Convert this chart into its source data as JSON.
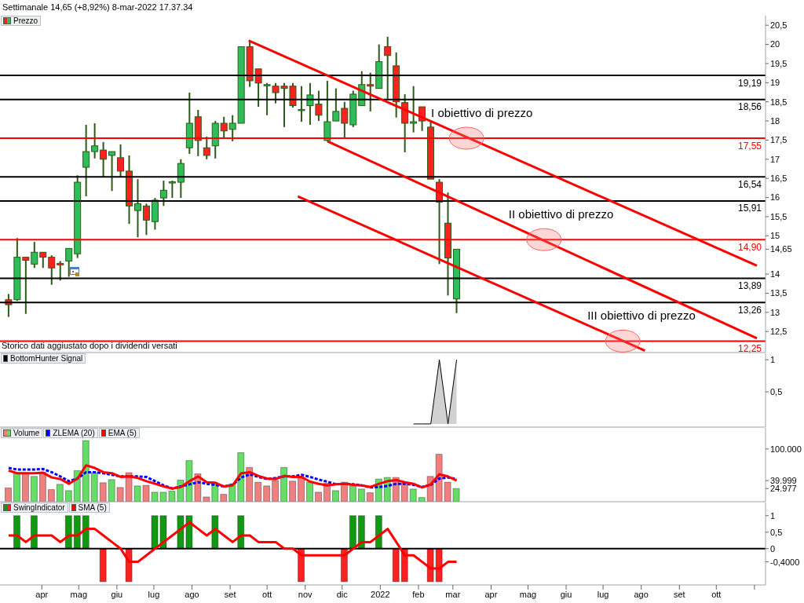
{
  "chart_data": [
    {
      "type": "candlestick",
      "title": "Settimanale 14,65 (+8,92%) 8-mar-2022 17.37.34",
      "legend": "top left",
      "tick_labels": "y",
      "x": [
        "2021-03-05",
        "2021-03-12",
        "2021-03-19",
        "2021-03-26",
        "2021-04-02",
        "2021-04-09",
        "2021-04-16",
        "2021-04-23",
        "2021-04-30",
        "2021-05-07",
        "2021-05-14",
        "2021-05-21",
        "2021-05-28",
        "2021-06-04",
        "2021-06-11",
        "2021-06-18",
        "2021-06-25",
        "2021-07-02",
        "2021-07-09",
        "2021-07-16",
        "2021-07-23",
        "2021-07-30",
        "2021-08-06",
        "2021-08-13",
        "2021-08-20",
        "2021-08-27",
        "2021-09-03",
        "2021-09-10",
        "2021-09-17",
        "2021-09-24",
        "2021-10-01",
        "2021-10-08",
        "2021-10-15",
        "2021-10-22",
        "2021-10-29",
        "2021-11-05",
        "2021-11-12",
        "2021-11-19",
        "2021-11-26",
        "2021-12-03",
        "2021-12-10",
        "2021-12-17",
        "2021-12-24",
        "2021-12-31",
        "2022-01-07",
        "2022-01-14",
        "2022-01-21",
        "2022-01-28",
        "2022-02-04",
        "2022-02-11",
        "2022-02-18",
        "2022-02-25",
        "2022-03-04"
      ],
      "xlim": [
        "2021-02-26",
        "2022-11-10"
      ],
      "ylim": [
        11.95,
        20.75
      ],
      "yticks": [
        {
          "value": 12.5,
          "label": "12,5"
        },
        13,
        {
          "value": 13.5,
          "label": "13,5"
        },
        14,
        {
          "value": 14.65,
          "label": "14,65"
        },
        15,
        {
          "value": 15.5,
          "label": "15,5"
        },
        16,
        {
          "value": 16.5,
          "label": "16,5"
        },
        17,
        {
          "value": 17.5,
          "label": "17,5"
        },
        18,
        {
          "value": 18.5,
          "label": "18,5"
        },
        19,
        {
          "value": 19.5,
          "label": "19,5"
        },
        20,
        {
          "value": 20.5,
          "label": "20,5"
        }
      ],
      "series": [
        {
          "name": "Prezzo",
          "type": "candlestick",
          "ohlc": [
            [
              13.33,
              13.48,
              12.88,
              13.2
            ],
            [
              13.33,
              14.94,
              13.3,
              14.44
            ],
            [
              14.44,
              14.44,
              12.96,
              14.36
            ],
            [
              14.26,
              14.84,
              14.16,
              14.57
            ],
            [
              14.57,
              14.57,
              14.16,
              14.44
            ],
            [
              14.44,
              14.49,
              13.72,
              14.16
            ],
            [
              14.28,
              14.34,
              13.83,
              14.24
            ],
            [
              14.34,
              14.67,
              13.93,
              14.67
            ],
            [
              14.53,
              16.58,
              14.42,
              16.4
            ],
            [
              16.79,
              17.9,
              16.03,
              17.2
            ],
            [
              17.2,
              17.94,
              17.02,
              17.35
            ],
            [
              17.24,
              17.45,
              16.54,
              17.0
            ],
            [
              17.1,
              17.2,
              16.17,
              17.2
            ],
            [
              17.04,
              17.39,
              16.54,
              16.69
            ],
            [
              16.69,
              17.1,
              15.31,
              15.78
            ],
            [
              15.66,
              16.48,
              14.96,
              15.84
            ],
            [
              15.78,
              15.84,
              15.02,
              15.41
            ],
            [
              15.37,
              15.99,
              15.16,
              15.93
            ],
            [
              15.99,
              16.44,
              15.78,
              16.19
            ],
            [
              16.38,
              16.44,
              15.99,
              16.41
            ],
            [
              16.4,
              17.0,
              15.99,
              16.89
            ],
            [
              17.3,
              18.74,
              17.14,
              17.94
            ],
            [
              18.11,
              18.29,
              17.08,
              17.49
            ],
            [
              17.3,
              17.59,
              17.0,
              17.1
            ],
            [
              17.35,
              18.0,
              17.02,
              17.94
            ],
            [
              17.94,
              18.11,
              17.57,
              17.74
            ],
            [
              17.78,
              18.15,
              17.47,
              17.94
            ],
            [
              17.94,
              19.94,
              17.94,
              19.94
            ],
            [
              19.94,
              20.1,
              18.89,
              19.05
            ],
            [
              19.36,
              19.36,
              18.37,
              18.99
            ],
            [
              18.93,
              18.99,
              18.15,
              18.95
            ],
            [
              18.91,
              18.99,
              18.46,
              18.74
            ],
            [
              18.91,
              18.99,
              17.84,
              18.85
            ],
            [
              18.91,
              18.99,
              18.35,
              18.4
            ],
            [
              18.28,
              18.91,
              17.98,
              18.3
            ],
            [
              18.4,
              18.99,
              17.9,
              18.68
            ],
            [
              18.44,
              18.79,
              18.0,
              18.15
            ],
            [
              17.49,
              19.05,
              17.47,
              17.98
            ],
            [
              18.0,
              18.85,
              18.0,
              18.25
            ],
            [
              18.33,
              18.5,
              17.57,
              17.94
            ],
            [
              17.9,
              18.79,
              17.84,
              18.7
            ],
            [
              18.4,
              19.3,
              18.4,
              18.95
            ],
            [
              18.95,
              19.26,
              18.25,
              18.91
            ],
            [
              18.85,
              20.0,
              18.85,
              19.55
            ],
            [
              19.94,
              20.2,
              18.58,
              19.71
            ],
            [
              19.44,
              19.79,
              18.09,
              18.5
            ],
            [
              18.48,
              18.7,
              17.18,
              17.94
            ],
            [
              17.94,
              18.91,
              17.7,
              17.98
            ],
            [
              18.37,
              18.37,
              17.74,
              18.0
            ],
            [
              17.84,
              18.0,
              16.48,
              16.48
            ],
            [
              16.4,
              16.48,
              14.26,
              15.88
            ],
            [
              15.33,
              16.13,
              13.44,
              14.42
            ],
            [
              13.35,
              14.65,
              12.98,
              14.65
            ]
          ],
          "colors": [
            "#ff2020",
            "#2ebd59",
            "#ff2020",
            "#2ebd59",
            "#ff2020",
            "#ff2020",
            "#ff2020",
            "#2ebd59",
            "#2ebd59",
            "#2ebd59",
            "#2ebd59",
            "#ff2020",
            "#2ebd59",
            "#ff2020",
            "#ff2020",
            "#2ebd59",
            "#ff2020",
            "#2ebd59",
            "#2ebd59",
            "#2ebd59",
            "#2ebd59",
            "#2ebd59",
            "#ff2020",
            "#ff2020",
            "#2ebd59",
            "#ff2020",
            "#2ebd59",
            "#2ebd59",
            "#ff2020",
            "#ff2020",
            "#2ebd59",
            "#ff2020",
            "#ff2020",
            "#ff2020",
            "#2ebd59",
            "#2ebd59",
            "#ff2020",
            "#2ebd59",
            "#2ebd59",
            "#ff2020",
            "#2ebd59",
            "#2ebd59",
            "#ff2020",
            "#2ebd59",
            "#ff2020",
            "#ff2020",
            "#ff2020",
            "#2ebd59",
            "#ff2020",
            "#ff2020",
            "#ff2020",
            "#ff2020",
            "#2ebd59"
          ]
        },
        {
          "type": "line",
          "color": "#ff0000",
          "x": [
            "2021-09-16",
            "2022-11-03"
          ],
          "values": [
            20.1,
            14.22
          ]
        },
        {
          "type": "line",
          "color": "#ff0000",
          "x": [
            "2021-11-19",
            "2022-11-03"
          ],
          "values": [
            17.47,
            12.32
          ]
        },
        {
          "type": "line",
          "color": "#ff0000",
          "x": [
            "2021-10-26",
            "2022-08-04"
          ],
          "values": [
            16.03,
            12.0
          ]
        }
      ],
      "ref_lines": [
        {
          "axis": "y",
          "value": 19.19,
          "label": "19,19",
          "color": "#000000"
        },
        {
          "axis": "y",
          "value": 18.56,
          "label": "18,56",
          "color": "#000000"
        },
        {
          "axis": "y",
          "value": 17.55,
          "label": "17,55",
          "color": "#ff0000"
        },
        {
          "axis": "y",
          "value": 16.54,
          "label": "16,54",
          "color": "#000000"
        },
        {
          "axis": "y",
          "value": 15.91,
          "label": "15,91",
          "color": "#000000"
        },
        {
          "axis": "y",
          "value": 14.9,
          "label": "14,90",
          "color": "#ff0000"
        },
        {
          "axis": "y",
          "value": 13.89,
          "label": "13,89",
          "color": "#000000"
        },
        {
          "axis": "y",
          "value": 13.26,
          "label": "13,26",
          "color": "#000000"
        },
        {
          "axis": "y",
          "value": 12.25,
          "label": "12,25",
          "color": "#ff0000"
        }
      ],
      "annotations": [
        {
          "text": "I obiettivo di prezzo",
          "x": "2022-03-12",
          "y": 17.55
        },
        {
          "text": "II obiettivo di prezzo",
          "x": "2022-05-14",
          "y": 14.9
        },
        {
          "text": "III obiettivo di prezzo",
          "x": "2022-07-17",
          "y": 12.25
        },
        "Storico dati aggiustato dopo i dividendi versati"
      ]
    },
    {
      "type": "area",
      "legend": "top left",
      "tick_labels": "y",
      "xlim": [
        "2021-02-26",
        "2022-11-10"
      ],
      "ylim": [
        -0.05,
        1.1
      ],
      "yticks": [
        {
          "value": 0.5,
          "label": "0,5"
        },
        1
      ],
      "series": [
        {
          "name": "BottomHunter Signal",
          "color": "#000000",
          "x": [
            "2022-01-28",
            "2022-02-04",
            "2022-02-11",
            "2022-02-18",
            "2022-02-25",
            "2022-03-04"
          ],
          "values": [
            0,
            0,
            0,
            1,
            0,
            1
          ]
        }
      ]
    },
    {
      "type": "bar",
      "legend": "top left",
      "tick_labels": "y",
      "x": [
        "2021-03-05",
        "2021-03-12",
        "2021-03-19",
        "2021-03-26",
        "2021-04-02",
        "2021-04-09",
        "2021-04-16",
        "2021-04-23",
        "2021-04-30",
        "2021-05-07",
        "2021-05-14",
        "2021-05-21",
        "2021-05-28",
        "2021-06-04",
        "2021-06-11",
        "2021-06-18",
        "2021-06-25",
        "2021-07-02",
        "2021-07-09",
        "2021-07-16",
        "2021-07-23",
        "2021-07-30",
        "2021-08-06",
        "2021-08-13",
        "2021-08-20",
        "2021-08-27",
        "2021-09-03",
        "2021-09-10",
        "2021-09-17",
        "2021-09-24",
        "2021-10-01",
        "2021-10-08",
        "2021-10-15",
        "2021-10-22",
        "2021-10-29",
        "2021-11-05",
        "2021-11-12",
        "2021-11-19",
        "2021-11-26",
        "2021-12-03",
        "2021-12-10",
        "2021-12-17",
        "2021-12-24",
        "2021-12-31",
        "2022-01-07",
        "2022-01-14",
        "2022-01-21",
        "2022-01-28",
        "2022-02-04",
        "2022-02-11",
        "2022-02-18",
        "2022-02-25",
        "2022-03-04"
      ],
      "xlim": [
        "2021-02-26",
        "2022-11-10"
      ],
      "ylim": [
        0,
        140000
      ],
      "yticks": [
        {
          "value": 24977,
          "label": "24.977"
        },
        {
          "value": 39999,
          "label": "39.999"
        },
        {
          "value": 100000,
          "label": "100.000"
        }
      ],
      "series": [
        {
          "name": "Volume",
          "values": [
            26000,
            55000,
            55000,
            48000,
            56000,
            23000,
            33000,
            21000,
            59000,
            116000,
            55000,
            36000,
            42000,
            27000,
            55000,
            30000,
            31000,
            18000,
            18000,
            20000,
            41000,
            78000,
            53000,
            9000,
            33000,
            14000,
            34000,
            93000,
            65000,
            37000,
            30000,
            40000,
            65000,
            39000,
            46000,
            37000,
            18000,
            35000,
            21000,
            37000,
            30000,
            24000,
            17000,
            43000,
            46000,
            46000,
            36000,
            24000,
            8000,
            48000,
            90000,
            37000,
            24977
          ],
          "colors": [
            "#f08080",
            "#66dd66",
            "#f08080",
            "#66dd66",
            "#f08080",
            "#f08080",
            "#66dd66",
            "#66dd66",
            "#66dd66",
            "#66dd66",
            "#66dd66",
            "#f08080",
            "#66dd66",
            "#f08080",
            "#f08080",
            "#66dd66",
            "#f08080",
            "#66dd66",
            "#66dd66",
            "#66dd66",
            "#66dd66",
            "#66dd66",
            "#f08080",
            "#f08080",
            "#66dd66",
            "#f08080",
            "#66dd66",
            "#66dd66",
            "#f08080",
            "#f08080",
            "#f08080",
            "#f08080",
            "#66dd66",
            "#f08080",
            "#f08080",
            "#66dd66",
            "#f08080",
            "#f08080",
            "#66dd66",
            "#f08080",
            "#66dd66",
            "#66dd66",
            "#f08080",
            "#66dd66",
            "#66dd66",
            "#f08080",
            "#f08080",
            "#66dd66",
            "#66dd66",
            "#f08080",
            "#f08080",
            "#f08080",
            "#66dd66"
          ]
        },
        {
          "name": "ZLEMA (20)",
          "type": "line",
          "color": "#0000ff",
          "line_style": "dashed",
          "values": [
            64000,
            61000,
            61000,
            61000,
            62000,
            56000,
            48000,
            39000,
            44000,
            56000,
            56000,
            54000,
            51000,
            48000,
            48000,
            48000,
            47000,
            39000,
            31000,
            25000,
            29000,
            33000,
            37000,
            34000,
            32000,
            29000,
            32000,
            46000,
            52000,
            47000,
            43000,
            45000,
            48000,
            48000,
            51000,
            47000,
            42000,
            38000,
            33000,
            34000,
            33000,
            31000,
            27000,
            28000,
            30000,
            34000,
            34000,
            32000,
            28000,
            32000,
            44000,
            46000,
            43000
          ]
        },
        {
          "name": "EMA (5)",
          "type": "line",
          "color": "#ff0000",
          "values": [
            59000,
            54000,
            54000,
            54000,
            55000,
            46000,
            43000,
            34000,
            44000,
            69000,
            64000,
            56000,
            54000,
            47000,
            48000,
            45000,
            39000,
            34000,
            29000,
            25000,
            28000,
            39000,
            48000,
            37000,
            36000,
            29000,
            31000,
            54000,
            56000,
            49000,
            44000,
            43000,
            49000,
            47000,
            47000,
            38000,
            34000,
            31000,
            33000,
            34000,
            32000,
            31000,
            28000,
            34000,
            39000,
            41000,
            37000,
            34000,
            27000,
            33000,
            52000,
            48000,
            39999
          ]
        }
      ]
    },
    {
      "type": "bar",
      "legend": "top left",
      "x": [
        "2021-03-05",
        "2021-03-12",
        "2021-03-19",
        "2021-03-26",
        "2021-04-02",
        "2021-04-09",
        "2021-04-16",
        "2021-04-23",
        "2021-04-30",
        "2021-05-07",
        "2021-05-14",
        "2021-05-21",
        "2021-05-28",
        "2021-06-04",
        "2021-06-11",
        "2021-06-18",
        "2021-06-25",
        "2021-07-02",
        "2021-07-09",
        "2021-07-16",
        "2021-07-23",
        "2021-07-30",
        "2021-08-06",
        "2021-08-13",
        "2021-08-20",
        "2021-08-27",
        "2021-09-03",
        "2021-09-10",
        "2021-09-17",
        "2021-09-24",
        "2021-10-01",
        "2021-10-08",
        "2021-10-15",
        "2021-10-22",
        "2021-10-29",
        "2021-11-05",
        "2021-11-12",
        "2021-11-19",
        "2021-11-26",
        "2021-12-03",
        "2021-12-10",
        "2021-12-17",
        "2021-12-24",
        "2021-12-31",
        "2022-01-07",
        "2022-01-14",
        "2022-01-21",
        "2022-01-28",
        "2022-02-04",
        "2022-02-11",
        "2022-02-18",
        "2022-02-25",
        "2022-03-04"
      ],
      "xlim": [
        "2021-02-26",
        "2022-11-10"
      ],
      "xticks": [
        {
          "value": "2021-04-01",
          "label": "apr"
        },
        {
          "value": "2021-05-01",
          "label": "mag"
        },
        {
          "value": "2021-06-01",
          "label": "giu"
        },
        {
          "value": "2021-07-01",
          "label": "lug"
        },
        {
          "value": "2021-08-01",
          "label": "ago"
        },
        {
          "value": "2021-09-01",
          "label": "set"
        },
        {
          "value": "2021-10-01",
          "label": "ott"
        },
        {
          "value": "2021-11-01",
          "label": "nov"
        },
        {
          "value": "2021-12-01",
          "label": "dic"
        },
        {
          "value": "2022-01-01",
          "label": "2022"
        },
        {
          "value": "2022-02-01",
          "label": "feb"
        },
        {
          "value": "2022-03-01",
          "label": "mar"
        },
        {
          "value": "2022-04-01",
          "label": "apr"
        },
        {
          "value": "2022-05-01",
          "label": "mag"
        },
        {
          "value": "2022-06-01",
          "label": "giu"
        },
        {
          "value": "2022-07-01",
          "label": "lug"
        },
        {
          "value": "2022-08-01",
          "label": "ago"
        },
        {
          "value": "2022-09-01",
          "label": "set"
        },
        {
          "value": "2022-10-01",
          "label": "ott"
        },
        {
          "value": "2022-11-01",
          "label": null
        }
      ],
      "ylim": [
        -1.1,
        1.4
      ],
      "yticks": [
        {
          "value": -0.4,
          "label": "-0,4000"
        },
        0,
        {
          "value": 0.5,
          "label": "0,5"
        },
        1
      ],
      "ref_lines": [
        {
          "axis": "y",
          "value": 0,
          "color": "#000000"
        }
      ],
      "series": [
        {
          "name": "SwingIndicator",
          "values": [
            0,
            1,
            0,
            1,
            0,
            0,
            0,
            1,
            1,
            1,
            0,
            -1,
            0,
            0,
            -1,
            0,
            0,
            1,
            1,
            0,
            1,
            1,
            0,
            0,
            1,
            0,
            0,
            1,
            0,
            0,
            0,
            0,
            0,
            0,
            -1,
            0,
            0,
            0,
            0,
            -1,
            1,
            1,
            0,
            1,
            0,
            -1,
            -1,
            0,
            0,
            -1,
            -1,
            0,
            0
          ],
          "colors": [
            "#119911",
            "#119911",
            "#119911",
            "#119911",
            "#119911",
            "#119911",
            "#119911",
            "#119911",
            "#119911",
            "#119911",
            "#119911",
            "#ff2020",
            "#119911",
            "#119911",
            "#ff2020",
            "#119911",
            "#119911",
            "#119911",
            "#119911",
            "#119911",
            "#119911",
            "#119911",
            "#119911",
            "#119911",
            "#119911",
            "#119911",
            "#119911",
            "#119911",
            "#119911",
            "#119911",
            "#119911",
            "#119911",
            "#119911",
            "#119911",
            "#ff2020",
            "#119911",
            "#119911",
            "#119911",
            "#119911",
            "#ff2020",
            "#119911",
            "#119911",
            "#119911",
            "#119911",
            "#119911",
            "#ff2020",
            "#ff2020",
            "#119911",
            "#119911",
            "#ff2020",
            "#ff2020",
            "#119911",
            "#119911"
          ]
        },
        {
          "name": "SMA (5)",
          "type": "line",
          "color": "#ff0000",
          "values": [
            0.4,
            0.4,
            0.2,
            0.4,
            0.4,
            0.4,
            0.2,
            0.4,
            0.4,
            0.6,
            0.6,
            0.4,
            0.2,
            0,
            -0.4,
            -0.4,
            -0.2,
            0,
            0.2,
            0.4,
            0.6,
            0.8,
            0.6,
            0.4,
            0.6,
            0.4,
            0.2,
            0.4,
            0.4,
            0.2,
            0.2,
            0.2,
            0,
            0,
            -0.2,
            -0.2,
            -0.2,
            -0.2,
            -0.2,
            -0.2,
            0,
            0.2,
            0.2,
            0.4,
            0.6,
            0.2,
            -0.2,
            -0.2,
            -0.4,
            -0.6,
            -0.6,
            -0.4,
            -0.4
          ]
        }
      ]
    }
  ]
}
